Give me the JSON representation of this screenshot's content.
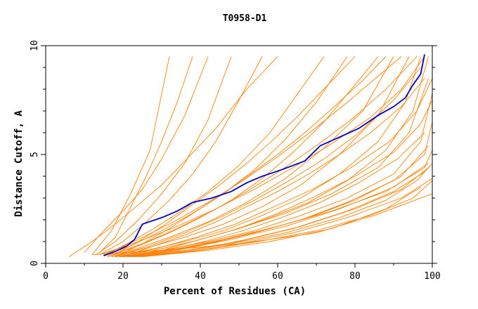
{
  "chart_data": {
    "type": "line",
    "title": "T0958-D1",
    "xlabel": "Percent of Residues (CA)",
    "ylabel": "Distance Cutoff, A",
    "xlim": [
      0,
      100
    ],
    "ylim": [
      0,
      10
    ],
    "xticks": [
      "0",
      "20",
      "40",
      "60",
      "80",
      "100"
    ],
    "yticks": [
      "0",
      "5",
      "10"
    ],
    "grid": false,
    "colors": {
      "highlight": "#0000cc",
      "others": "#ff8000"
    },
    "highlight_series": {
      "x": [
        15,
        18,
        21,
        23,
        25,
        30,
        34,
        38,
        43,
        48,
        52,
        56,
        61,
        67,
        71,
        76,
        81,
        86,
        90,
        93,
        95,
        97,
        98
      ],
      "y": [
        0.35,
        0.55,
        0.8,
        1.1,
        1.8,
        2.1,
        2.4,
        2.8,
        3.0,
        3.3,
        3.7,
        4.0,
        4.3,
        4.7,
        5.4,
        5.8,
        6.2,
        6.8,
        7.2,
        7.6,
        8.2,
        8.7,
        9.6
      ]
    },
    "other_series": [
      {
        "x": [
          12,
          17,
          22,
          27,
          32
        ],
        "y": [
          0.4,
          1.5,
          3.2,
          5.2,
          9.5
        ]
      },
      {
        "x": [
          14,
          18,
          22,
          26,
          30,
          34,
          38
        ],
        "y": [
          0.5,
          1.2,
          2.6,
          4.0,
          5.6,
          7.4,
          9.5
        ]
      },
      {
        "x": [
          10,
          15,
          20,
          25,
          30,
          36,
          42
        ],
        "y": [
          0.5,
          1.5,
          2.4,
          3.4,
          4.8,
          6.8,
          9.5
        ]
      },
      {
        "x": [
          13,
          18,
          24,
          30,
          36,
          42,
          48
        ],
        "y": [
          0.4,
          1.0,
          2.0,
          3.2,
          4.6,
          6.6,
          9.5
        ]
      },
      {
        "x": [
          14,
          20,
          26,
          32,
          38,
          44,
          50,
          56
        ],
        "y": [
          0.4,
          1.0,
          1.9,
          2.9,
          4.1,
          5.6,
          7.5,
          9.5
        ]
      },
      {
        "x": [
          6,
          12,
          18,
          24,
          30,
          36,
          44,
          52,
          60
        ],
        "y": [
          0.3,
          1.0,
          1.8,
          2.7,
          3.6,
          4.7,
          6.2,
          8.0,
          9.5
        ]
      },
      {
        "x": [
          15,
          21,
          28,
          35,
          42,
          50,
          58,
          66,
          72
        ],
        "y": [
          0.35,
          0.9,
          1.6,
          2.4,
          3.3,
          4.5,
          6.0,
          8.0,
          9.5
        ]
      },
      {
        "x": [
          15,
          22,
          30,
          38,
          46,
          54,
          62,
          70,
          78
        ],
        "y": [
          0.35,
          0.8,
          1.5,
          2.3,
          3.2,
          4.3,
          5.7,
          7.4,
          9.5
        ]
      },
      {
        "x": [
          16,
          24,
          32,
          40,
          48,
          56,
          64,
          72,
          80,
          86
        ],
        "y": [
          0.3,
          0.8,
          1.4,
          2.1,
          2.9,
          3.9,
          5.1,
          6.5,
          8.2,
          9.5
        ]
      },
      {
        "x": [
          16,
          24,
          32,
          42,
          52,
          62,
          72,
          82,
          90
        ],
        "y": [
          0.3,
          0.7,
          1.2,
          1.9,
          2.8,
          3.9,
          5.3,
          7.0,
          9.5
        ]
      },
      {
        "x": [
          17,
          26,
          36,
          46,
          56,
          66,
          76,
          86,
          94
        ],
        "y": [
          0.3,
          0.7,
          1.2,
          1.8,
          2.6,
          3.6,
          5.0,
          6.8,
          9.5
        ]
      },
      {
        "x": [
          17,
          26,
          36,
          46,
          56,
          66,
          76,
          86,
          93,
          97
        ],
        "y": [
          0.3,
          0.6,
          1.0,
          1.5,
          2.2,
          3.0,
          4.1,
          5.6,
          7.4,
          9.5
        ]
      },
      {
        "x": [
          18,
          28,
          38,
          48,
          58,
          68,
          78,
          88,
          95,
          99
        ],
        "y": [
          0.3,
          0.6,
          1.0,
          1.5,
          2.1,
          2.8,
          3.8,
          5.2,
          7.0,
          9.5
        ]
      },
      {
        "x": [
          18,
          28,
          38,
          50,
          62,
          74,
          86,
          94,
          99
        ],
        "y": [
          0.3,
          0.6,
          1.0,
          1.6,
          2.3,
          3.2,
          4.4,
          6.0,
          8.5
        ]
      },
      {
        "x": [
          19,
          30,
          42,
          54,
          66,
          78,
          90,
          97,
          100
        ],
        "y": [
          0.3,
          0.6,
          1.0,
          1.5,
          2.2,
          3.0,
          4.1,
          5.6,
          7.8
        ]
      },
      {
        "x": [
          19,
          30,
          42,
          54,
          66,
          78,
          90,
          98,
          100
        ],
        "y": [
          0.3,
          0.5,
          0.9,
          1.4,
          2.0,
          2.8,
          3.8,
          5.0,
          6.5
        ]
      },
      {
        "x": [
          20,
          32,
          44,
          56,
          68,
          80,
          92,
          99
        ],
        "y": [
          0.3,
          0.6,
          1.0,
          1.5,
          2.1,
          2.9,
          4.0,
          5.4
        ]
      },
      {
        "x": [
          20,
          32,
          46,
          60,
          74,
          88,
          98,
          100
        ],
        "y": [
          0.3,
          0.6,
          1.1,
          1.7,
          2.4,
          3.3,
          4.4,
          5.2
        ]
      },
      {
        "x": [
          21,
          34,
          48,
          62,
          76,
          90,
          99
        ],
        "y": [
          0.3,
          0.6,
          1.1,
          1.7,
          2.5,
          3.5,
          4.6
        ]
      },
      {
        "x": [
          21,
          34,
          48,
          62,
          76,
          88,
          96,
          100
        ],
        "y": [
          0.3,
          0.5,
          0.9,
          1.4,
          2.1,
          2.9,
          3.8,
          4.6
        ]
      },
      {
        "x": [
          22,
          36,
          50,
          64,
          78,
          90,
          98
        ],
        "y": [
          0.3,
          0.6,
          1.0,
          1.6,
          2.4,
          3.3,
          4.2
        ]
      },
      {
        "x": [
          22,
          36,
          50,
          64,
          78,
          92,
          100
        ],
        "y": [
          0.3,
          0.5,
          0.9,
          1.4,
          2.1,
          3.0,
          3.9
        ]
      },
      {
        "x": [
          23,
          38,
          52,
          66,
          80,
          92,
          99
        ],
        "y": [
          0.3,
          0.6,
          1.1,
          1.7,
          2.5,
          3.4,
          4.4
        ]
      },
      {
        "x": [
          24,
          40,
          55,
          70,
          84,
          95,
          100
        ],
        "y": [
          0.3,
          0.6,
          1.0,
          1.5,
          2.2,
          3.0,
          3.8
        ]
      },
      {
        "x": [
          25,
          42,
          58,
          74,
          88,
          97
        ],
        "y": [
          0.3,
          0.6,
          1.0,
          1.6,
          2.5,
          3.5
        ]
      },
      {
        "x": [
          12,
          30,
          50,
          70,
          85,
          100
        ],
        "y": [
          0.4,
          0.6,
          0.9,
          1.4,
          2.2,
          3.2
        ]
      },
      {
        "x": [
          14,
          24,
          34,
          44,
          54,
          64,
          74,
          84,
          92,
          98
        ],
        "y": [
          0.4,
          1.0,
          1.7,
          2.5,
          3.4,
          4.4,
          5.5,
          6.7,
          8.0,
          9.5
        ]
      },
      {
        "x": [
          15,
          24,
          33,
          42,
          51,
          60,
          69,
          78,
          86,
          92
        ],
        "y": [
          0.4,
          1.1,
          1.9,
          2.8,
          3.8,
          4.9,
          6.1,
          7.4,
          8.6,
          9.5
        ]
      },
      {
        "x": [
          16,
          25,
          34,
          43,
          52,
          61,
          70,
          79,
          88,
          96
        ],
        "y": [
          0.35,
          0.9,
          1.6,
          2.4,
          3.3,
          4.3,
          5.4,
          6.6,
          8.0,
          9.5
        ]
      },
      {
        "x": [
          18,
          27,
          36,
          45,
          54,
          63,
          72,
          81,
          90,
          97
        ],
        "y": [
          0.35,
          0.8,
          1.4,
          2.1,
          2.9,
          3.8,
          4.8,
          6.0,
          7.5,
          9.0
        ]
      },
      {
        "x": [
          19,
          29,
          39,
          49,
          59,
          69,
          79,
          89,
          96,
          100
        ],
        "y": [
          0.3,
          0.7,
          1.2,
          1.8,
          2.6,
          3.4,
          4.4,
          5.6,
          7.0,
          8.5
        ]
      },
      {
        "x": [
          20,
          30,
          40,
          50,
          60,
          70,
          80,
          90,
          97,
          100
        ],
        "y": [
          0.3,
          0.6,
          1.1,
          1.6,
          2.3,
          3.1,
          4.0,
          5.1,
          6.4,
          7.5
        ]
      },
      {
        "x": [
          21,
          31,
          41,
          51,
          61,
          71,
          81,
          91,
          98
        ],
        "y": [
          0.3,
          0.6,
          1.0,
          1.5,
          2.1,
          2.8,
          3.7,
          4.8,
          6.0
        ]
      },
      {
        "x": [
          17,
          24,
          31,
          38,
          45,
          52,
          59,
          66,
          73,
          80
        ],
        "y": [
          0.35,
          1.0,
          1.8,
          2.7,
          3.6,
          4.6,
          5.7,
          6.9,
          8.2,
          9.5
        ]
      },
      {
        "x": [
          18,
          25,
          32,
          39,
          46,
          53,
          60,
          67,
          74,
          82,
          88
        ],
        "y": [
          0.3,
          0.9,
          1.6,
          2.4,
          3.2,
          4.1,
          5.0,
          6.0,
          7.1,
          8.4,
          9.5
        ]
      },
      {
        "x": [
          20,
          28,
          36,
          44,
          52,
          60,
          68,
          76,
          84,
          92,
          98
        ],
        "y": [
          0.3,
          0.8,
          1.3,
          1.9,
          2.6,
          3.3,
          4.1,
          5.0,
          6.0,
          7.2,
          8.5
        ]
      }
    ]
  }
}
